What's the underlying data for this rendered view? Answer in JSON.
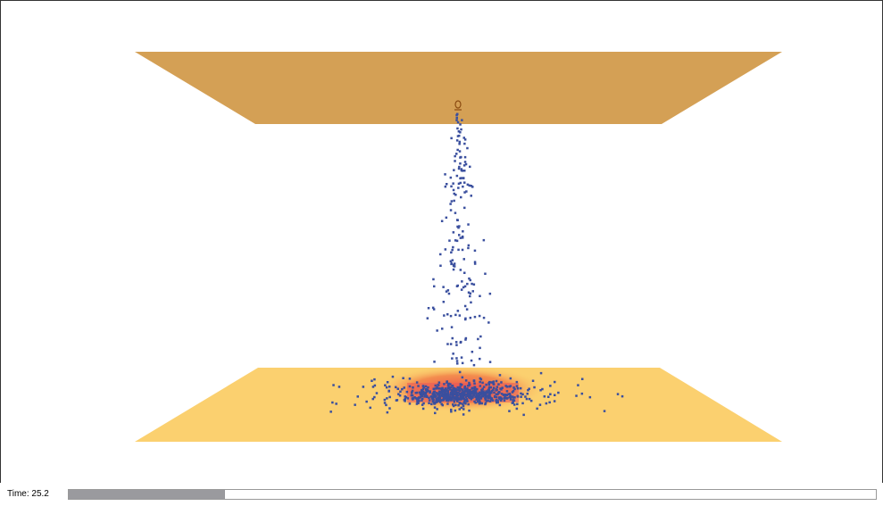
{
  "status": {
    "time_label": "Time: 25.2"
  }
}
